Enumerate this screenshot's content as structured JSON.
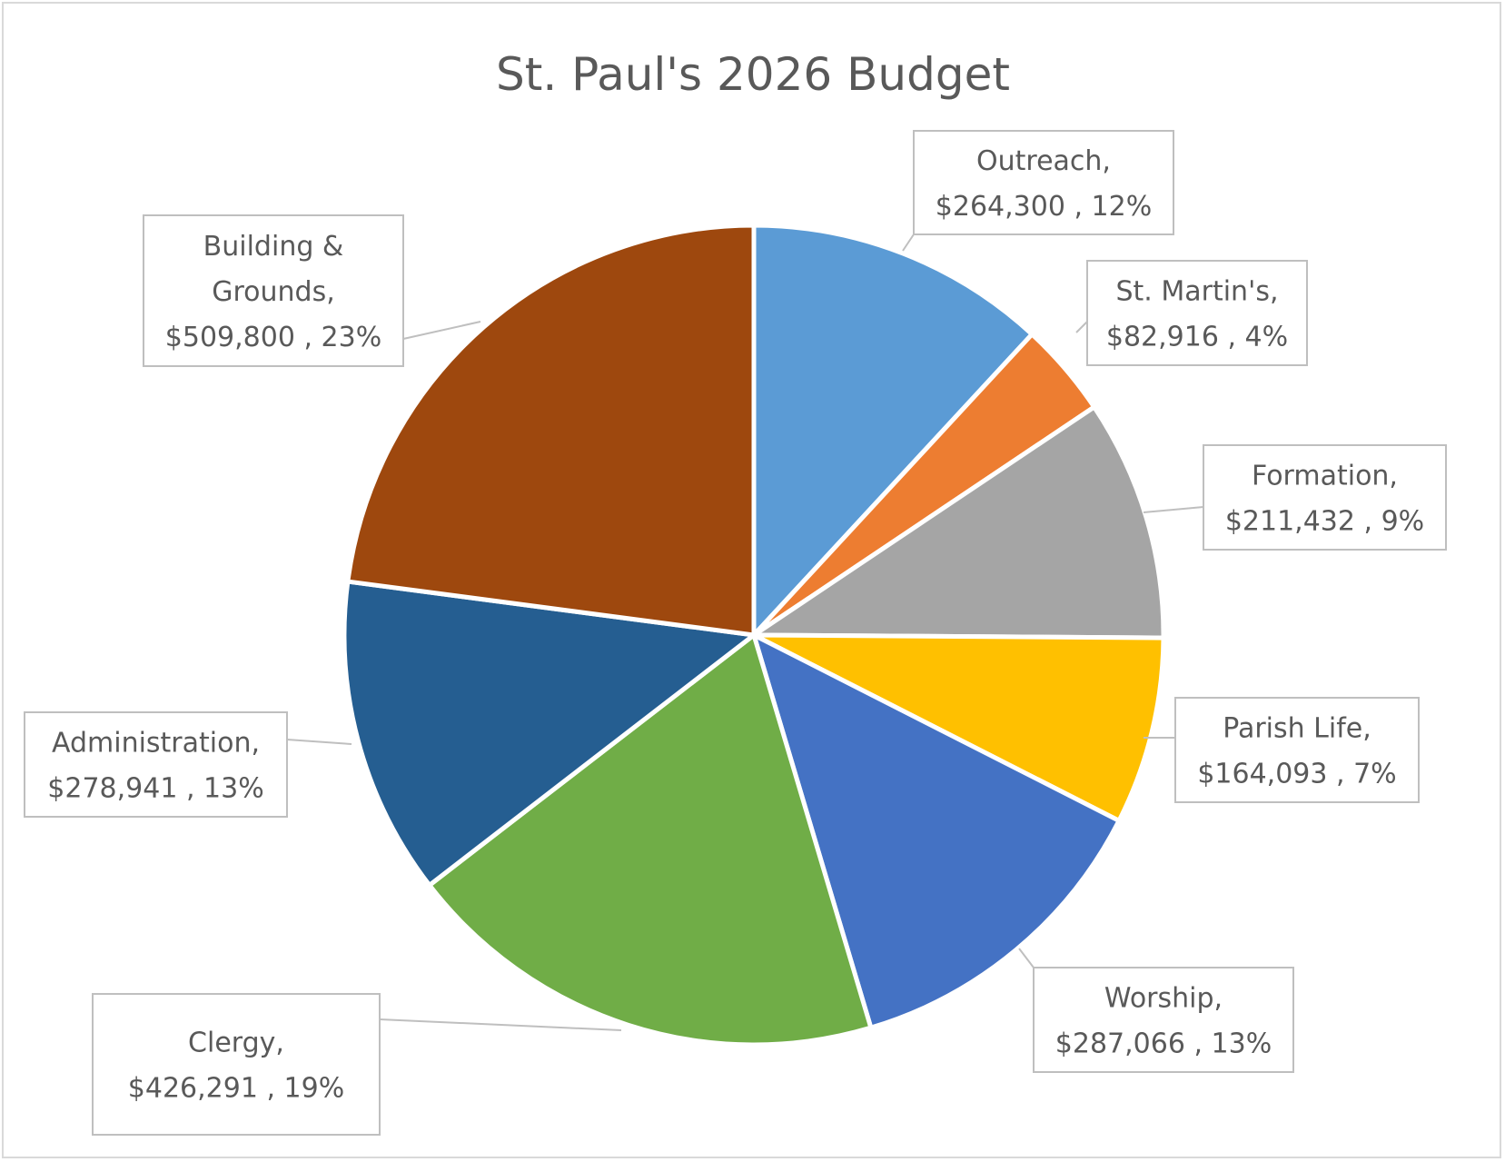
{
  "chart_data": {
    "type": "pie",
    "title": "St. Paul's 2026 Budget",
    "slices": [
      {
        "name": "Outreach",
        "value": 264300,
        "value_label": "$264,300",
        "percent": "12%",
        "color": "#5b9bd5"
      },
      {
        "name": "St. Martin's",
        "value": 82916,
        "value_label": "$82,916",
        "percent": "4%",
        "color": "#ed7d31"
      },
      {
        "name": "Formation",
        "value": 211432,
        "value_label": "$211,432",
        "percent": "9%",
        "color": "#a5a5a5"
      },
      {
        "name": "Parish Life",
        "value": 164093,
        "value_label": "$164,093",
        "percent": "7%",
        "color": "#ffc000"
      },
      {
        "name": "Worship",
        "value": 287066,
        "value_label": "$287,066",
        "percent": "13%",
        "color": "#4472c4"
      },
      {
        "name": "Clergy",
        "value": 426291,
        "value_label": "$426,291",
        "percent": "19%",
        "color": "#70ad47"
      },
      {
        "name": "Administration",
        "value": 278941,
        "value_label": "$278,941",
        "percent": "13%",
        "color": "#255e91"
      },
      {
        "name": "Building & Grounds",
        "value": 509800,
        "value_label": "$509,800",
        "percent": "23%",
        "color": "#9e480e"
      }
    ]
  }
}
